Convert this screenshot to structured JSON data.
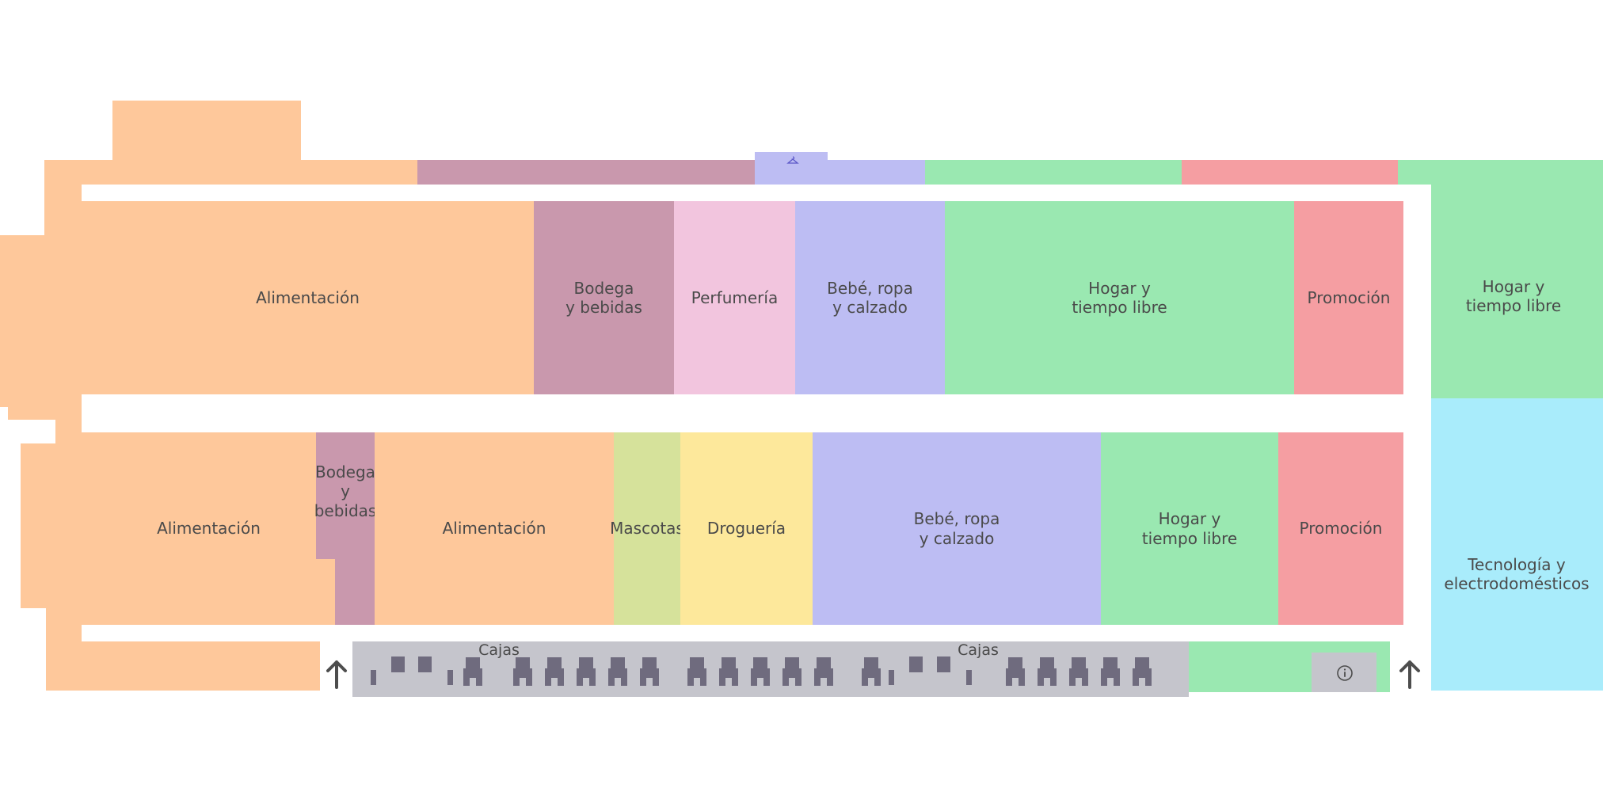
{
  "colors": {
    "alimentacion": "#fec89b",
    "bodega": "#c998ad",
    "perfumeria": "#f2c5de",
    "bebe": "#bdbdf3",
    "hogar": "#9ae8b1",
    "promocion": "#f59ea2",
    "tecnologia": "#a9ecfb",
    "mascotas": "#d6e29b",
    "drogueria": "#fde89b",
    "cajas": "#c5c5cc",
    "registers": "#6f6b7e"
  },
  "sections": {
    "top_alimentacion": "Alimentación",
    "top_bodega": "Bodega\ny bebidas",
    "top_perfumeria": "Perfumería",
    "top_bebe": "Bebé, ropa\ny calzado",
    "top_hogar": "Hogar y\ntiempo libre",
    "top_promocion": "Promoción",
    "right_hogar": "Hogar y\ntiempo libre",
    "right_tecnologia": "Tecnología y\nelectrodomésticos",
    "bottom_alimentacion_left": "Alimentación",
    "bottom_bodega": "Bodega\ny\nbebidas",
    "bottom_alimentacion_mid": "Alimentación",
    "bottom_mascotas": "Mascotas",
    "bottom_drogueria": "Droguería",
    "bottom_bebe": "Bebé, ropa\ny calzado",
    "bottom_hogar": "Hogar y\ntiempo libre",
    "bottom_promocion": "Promoción"
  },
  "checkout": {
    "label_left": "Cajas",
    "label_right": "Cajas"
  },
  "icons": {
    "info": "info-icon",
    "hanger": "hanger-icon",
    "entrance_left": "up-arrow-icon",
    "entrance_right": "up-arrow-icon"
  }
}
